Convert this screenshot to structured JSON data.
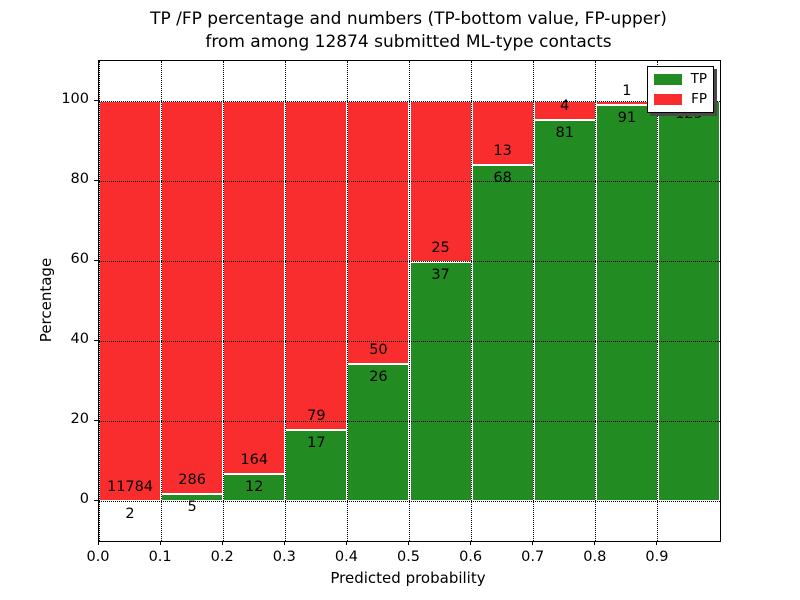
{
  "title": {
    "line1": "TP /FP percentage and numbers (TP-bottom value, FP-upper)",
    "line2": "from among 12874 submitted ML-type contacts"
  },
  "axes": {
    "xlabel": "Predicted probability",
    "ylabel": "Percentage",
    "xtick_labels": [
      "0.0",
      "0.1",
      "0.2",
      "0.3",
      "0.4",
      "0.5",
      "0.6",
      "0.7",
      "0.8",
      "0.9"
    ],
    "ytick_labels": [
      "0",
      "20",
      "40",
      "60",
      "80",
      "100"
    ]
  },
  "legend": {
    "entries": [
      {
        "label": "TP",
        "color": "#228b22"
      },
      {
        "label": "FP",
        "color": "#f92d2d"
      }
    ]
  },
  "chart_data": {
    "type": "bar",
    "stacked": true,
    "normalized": "percent",
    "title": "TP /FP percentage and numbers (TP-bottom value, FP-upper) from among 12874 submitted ML-type contacts",
    "total_submitted_contacts": 12874,
    "xlabel": "Predicted probability",
    "ylabel": "Percentage",
    "xlim": [
      0.0,
      1.0
    ],
    "ylim": [
      -10,
      110
    ],
    "bin_width": 0.1,
    "bin_starts": [
      0.0,
      0.1,
      0.2,
      0.3,
      0.4,
      0.5,
      0.6,
      0.7,
      0.8,
      0.9
    ],
    "xticks": [
      0.0,
      0.1,
      0.2,
      0.3,
      0.4,
      0.5,
      0.6,
      0.7,
      0.8,
      0.9
    ],
    "yticks": [
      0,
      20,
      40,
      60,
      80,
      100
    ],
    "grid": {
      "style": "dotted",
      "color": "#000000"
    },
    "legend_position": "upper right",
    "series": [
      {
        "name": "TP",
        "color": "#228b22",
        "values": [
          2,
          5,
          12,
          17,
          26,
          37,
          68,
          81,
          91,
          129
        ]
      },
      {
        "name": "FP",
        "color": "#f92d2d",
        "values": [
          11784,
          286,
          164,
          79,
          50,
          25,
          13,
          4,
          1,
          0
        ]
      }
    ]
  }
}
